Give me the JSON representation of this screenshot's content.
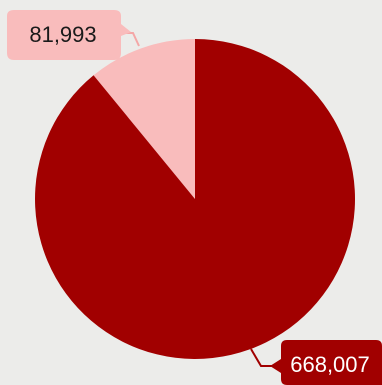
{
  "chart_data": {
    "type": "pie",
    "title": "",
    "slices": [
      {
        "value": 81993,
        "label": "81,993",
        "color": "#f9bcbc",
        "label_color": "#1a1a1a"
      },
      {
        "value": 668007,
        "label": "668,007",
        "color": "#a10000",
        "label_color": "#ffffff"
      }
    ],
    "legend": "none",
    "background": "#ececea"
  }
}
